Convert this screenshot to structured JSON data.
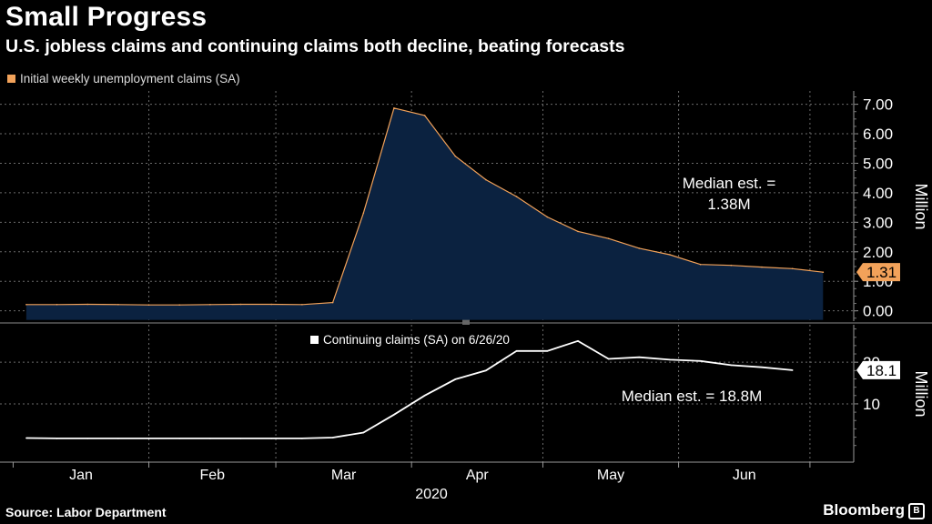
{
  "title": "Small Progress",
  "subtitle": "U.S. jobless claims and continuing claims both decline, beating forecasts",
  "source": "Source: Labor Department",
  "brand": "Bloomberg",
  "colors": {
    "background": "#000000",
    "initial_line": "#f2a25a",
    "initial_fill": "#0b2240",
    "continuing_line": "#ffffff",
    "grid": "#6b6b6b"
  },
  "chart_data": [
    {
      "type": "area",
      "legend": "Initial weekly unemployment claims (SA)",
      "ylabel": "Million",
      "ylim": [
        -0.35,
        7.45
      ],
      "yticks": [
        0,
        1,
        2,
        3,
        4,
        5,
        6,
        7
      ],
      "ytick_labels": [
        "0.00",
        "1.00",
        "2.00",
        "3.00",
        "4.00",
        "5.00",
        "6.00",
        "7.00"
      ],
      "last_value_label": "1.31",
      "annotation": [
        "Median est. =",
        "1.38M"
      ],
      "x": [
        "2020-01-04",
        "2020-01-11",
        "2020-01-18",
        "2020-01-25",
        "2020-02-01",
        "2020-02-08",
        "2020-02-15",
        "2020-02-22",
        "2020-02-29",
        "2020-03-07",
        "2020-03-14",
        "2020-03-21",
        "2020-03-28",
        "2020-04-04",
        "2020-04-11",
        "2020-04-18",
        "2020-04-25",
        "2020-05-02",
        "2020-05-09",
        "2020-05-16",
        "2020-05-23",
        "2020-05-30",
        "2020-06-06",
        "2020-06-13",
        "2020-06-20",
        "2020-06-27",
        "2020-07-04"
      ],
      "values": [
        0.21,
        0.21,
        0.22,
        0.21,
        0.2,
        0.2,
        0.21,
        0.22,
        0.22,
        0.21,
        0.28,
        3.31,
        6.87,
        6.62,
        5.24,
        4.44,
        3.87,
        3.18,
        2.69,
        2.45,
        2.12,
        1.9,
        1.57,
        1.54,
        1.48,
        1.43,
        1.31
      ]
    },
    {
      "type": "line",
      "legend": "Continuing claims (SA) on 6/26/20",
      "ylabel": "Million",
      "ylim": [
        -4,
        29
      ],
      "yticks": [
        10,
        20
      ],
      "ytick_labels": [
        "10",
        "20"
      ],
      "last_value_label": "18.1",
      "annotation": "Median est. = 18.8M",
      "x": [
        "2020-01-04",
        "2020-01-11",
        "2020-01-18",
        "2020-01-25",
        "2020-02-01",
        "2020-02-08",
        "2020-02-15",
        "2020-02-22",
        "2020-02-29",
        "2020-03-07",
        "2020-03-14",
        "2020-03-21",
        "2020-03-28",
        "2020-04-04",
        "2020-04-11",
        "2020-04-18",
        "2020-04-25",
        "2020-05-02",
        "2020-05-09",
        "2020-05-16",
        "2020-05-23",
        "2020-05-30",
        "2020-06-06",
        "2020-06-13",
        "2020-06-20",
        "2020-06-27"
      ],
      "values": [
        1.8,
        1.7,
        1.7,
        1.7,
        1.7,
        1.7,
        1.7,
        1.7,
        1.7,
        1.7,
        1.9,
        3.1,
        7.4,
        12.0,
        15.9,
        18.0,
        22.7,
        22.7,
        25.1,
        20.8,
        21.2,
        20.6,
        20.3,
        19.3,
        18.8,
        18.1
      ]
    }
  ],
  "x_axis": {
    "tick_labels": [
      "Jan",
      "Feb",
      "Mar",
      "Apr",
      "May",
      "Jun"
    ],
    "year_label": "2020"
  }
}
